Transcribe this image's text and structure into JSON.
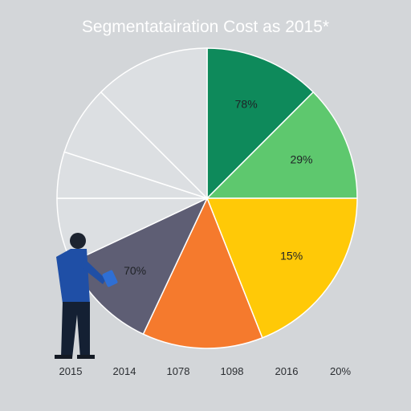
{
  "chart_data": {
    "type": "pie",
    "title": "Segmentatairation Cost as 2015*",
    "slices": [
      {
        "value": 12.5,
        "label": "78%",
        "color": "#0e8a5b"
      },
      {
        "value": 12.5,
        "label": "29%",
        "color": "#5ec86e"
      },
      {
        "value": 19.0,
        "label": "15%",
        "color": "#ffc907"
      },
      {
        "value": 13.0,
        "label": "",
        "color": "#f57a2d"
      },
      {
        "value": 11.0,
        "label": "70%",
        "color": "#5e5e74"
      },
      {
        "value": 7.0,
        "label": "",
        "color": "#dcdfe2"
      },
      {
        "value": 5.0,
        "label": "",
        "color": "#dcdfe2"
      },
      {
        "value": 7.5,
        "label": "",
        "color": "#dcdfe2"
      },
      {
        "value": 12.5,
        "label": "",
        "color": "#dcdfe2"
      }
    ],
    "bottom_labels": [
      "2015",
      "2014",
      "1078",
      "1098",
      "2016",
      "20%"
    ]
  }
}
